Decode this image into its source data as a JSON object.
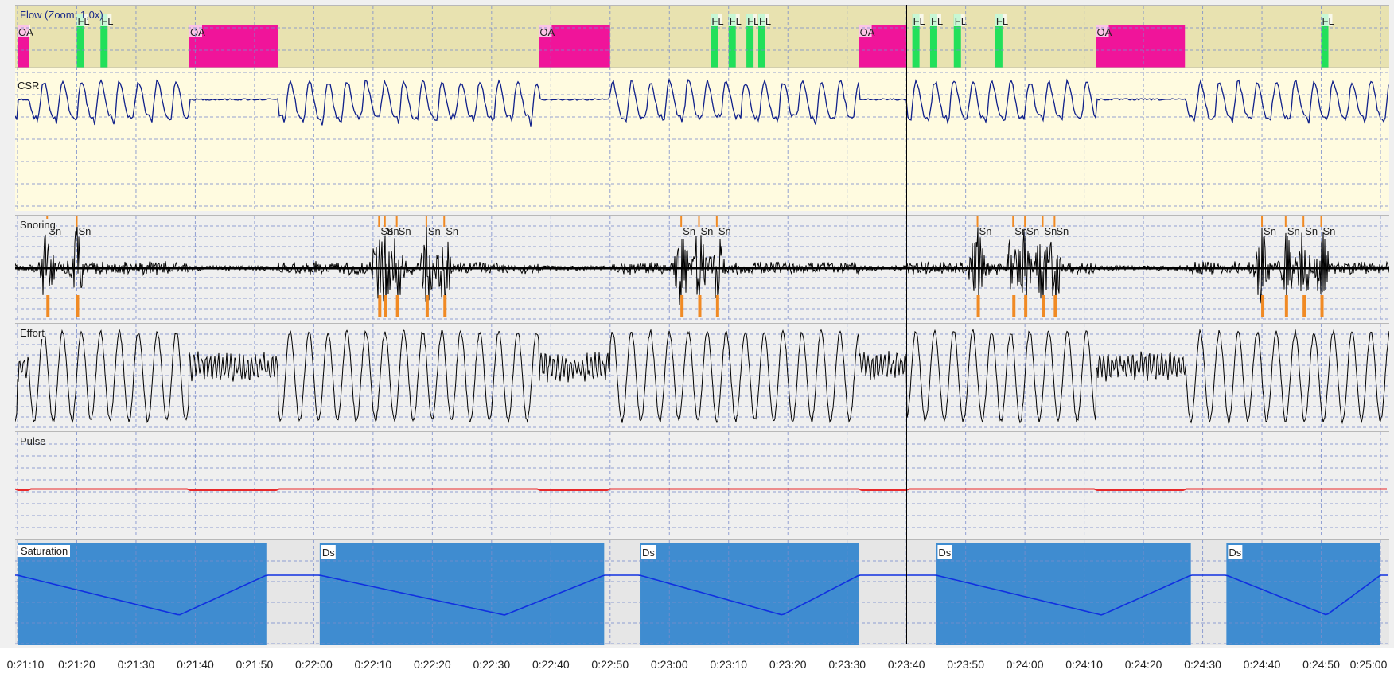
{
  "panels": {
    "flow": {
      "title": "Flow (Zoom: 1,0x)",
      "sublabel": "CSR",
      "events": [
        {
          "type": "OA",
          "start": "0:21:10",
          "end": "0:21:12"
        },
        {
          "type": "FL",
          "start": "0:21:20",
          "end": "0:21:21"
        },
        {
          "type": "FL",
          "start": "0:21:24",
          "end": "0:21:25"
        },
        {
          "type": "OA",
          "start": "0:21:39",
          "end": "0:21:54"
        },
        {
          "type": "OA",
          "start": "0:22:38",
          "end": "0:22:50"
        },
        {
          "type": "FL",
          "start": "0:23:07",
          "end": "0:23:08"
        },
        {
          "type": "FL",
          "start": "0:23:10",
          "end": "0:23:11"
        },
        {
          "type": "FL",
          "start": "0:23:13",
          "end": "0:23:14"
        },
        {
          "type": "FL",
          "start": "0:23:15",
          "end": "0:23:16"
        },
        {
          "type": "OA",
          "start": "0:23:32",
          "end": "0:23:40"
        },
        {
          "type": "FL",
          "start": "0:23:41",
          "end": "0:23:42"
        },
        {
          "type": "FL",
          "start": "0:23:44",
          "end": "0:23:45"
        },
        {
          "type": "FL",
          "start": "0:23:48",
          "end": "0:23:49"
        },
        {
          "type": "FL",
          "start": "0:23:55",
          "end": "0:23:56"
        },
        {
          "type": "OA",
          "start": "0:24:12",
          "end": "0:24:27"
        },
        {
          "type": "FL",
          "start": "0:24:50",
          "end": "0:24:51"
        }
      ]
    },
    "snoring": {
      "title": "Snoring",
      "events": [
        {
          "type": "Sn",
          "time": "0:21:15"
        },
        {
          "type": "Sn",
          "time": "0:21:20"
        },
        {
          "type": "Sn",
          "time": "0:22:11"
        },
        {
          "type": "Sn",
          "time": "0:22:12"
        },
        {
          "type": "Sn",
          "time": "0:22:14"
        },
        {
          "type": "Sn",
          "time": "0:22:19"
        },
        {
          "type": "Sn",
          "time": "0:22:22"
        },
        {
          "type": "Sn",
          "time": "0:23:02"
        },
        {
          "type": "Sn",
          "time": "0:23:05"
        },
        {
          "type": "Sn",
          "time": "0:23:08"
        },
        {
          "type": "Sn",
          "time": "0:23:52"
        },
        {
          "type": "Sn",
          "time": "0:23:58"
        },
        {
          "type": "Sn",
          "time": "0:24:00"
        },
        {
          "type": "Sn",
          "time": "0:24:03"
        },
        {
          "type": "Sn",
          "time": "0:24:05"
        },
        {
          "type": "Sn",
          "time": "0:24:40"
        },
        {
          "type": "Sn",
          "time": "0:24:44"
        },
        {
          "type": "Sn",
          "time": "0:24:47"
        },
        {
          "type": "Sn",
          "time": "0:24:50"
        }
      ]
    },
    "effort": {
      "title": "Effort"
    },
    "pulse": {
      "title": "Pulse"
    },
    "saturation": {
      "title": "Saturation",
      "events": [
        {
          "type": "",
          "start": "0:21:10",
          "end": "0:21:52"
        },
        {
          "type": "Ds",
          "start": "0:22:01",
          "end": "0:22:49"
        },
        {
          "type": "Ds",
          "start": "0:22:55",
          "end": "0:23:32"
        },
        {
          "type": "Ds",
          "start": "0:23:45",
          "end": "0:24:28"
        },
        {
          "type": "Ds",
          "start": "0:24:34",
          "end": "0:25:00"
        }
      ]
    }
  },
  "cursor_time": "0:23:40",
  "time_axis": {
    "ticks": [
      "0:21:10",
      "0:21:20",
      "0:21:30",
      "0:21:40",
      "0:21:50",
      "0:22:00",
      "0:22:10",
      "0:22:20",
      "0:22:30",
      "0:22:40",
      "0:22:50",
      "0:23:00",
      "0:23:10",
      "0:23:20",
      "0:23:30",
      "0:23:40",
      "0:23:50",
      "0:24:00",
      "0:24:10",
      "0:24:20",
      "0:24:30",
      "0:24:40",
      "0:24:50",
      "0:25:00"
    ]
  },
  "colors": {
    "flow_event_band": "#e8e2b0",
    "flow_bg": "#fffbe0",
    "oa_event": "#f0149a",
    "fl_event": "#22e05a",
    "sn_marker": "#f08a24",
    "flow_trace": "#10208a",
    "snore_trace": "#000000",
    "effort_trace": "#000000",
    "pulse_trace": "#e8282a",
    "desat_fill": "#3f8cd0",
    "sat_trace": "#1030e0",
    "grid": "#7a8ccc"
  }
}
